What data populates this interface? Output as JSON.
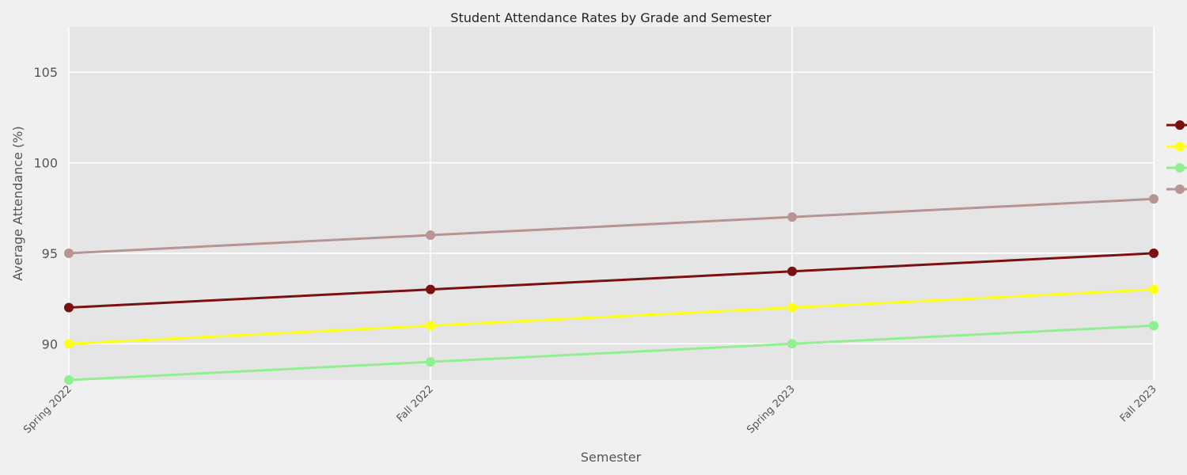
{
  "chart_data": {
    "type": "line",
    "title": "Student Attendance Rates by Grade and Semester",
    "xlabel": "Semester",
    "ylabel": "Average Attendance (%)",
    "categories": [
      "Spring 2022",
      "Fall 2022",
      "Spring 2023",
      "Fall 2023"
    ],
    "ylim": [
      88,
      107.5
    ],
    "yticks": [
      90,
      95,
      100,
      105
    ],
    "grid": true,
    "legend_position": "right",
    "series": [
      {
        "color": "#7b1010",
        "values": [
          92,
          93,
          94,
          95
        ]
      },
      {
        "color": "#ffff14",
        "values": [
          90,
          91,
          92,
          93
        ]
      },
      {
        "color": "#90f090",
        "values": [
          88,
          89,
          90,
          91
        ]
      },
      {
        "color": "#b89494",
        "values": [
          95,
          96,
          97,
          98
        ]
      }
    ]
  }
}
